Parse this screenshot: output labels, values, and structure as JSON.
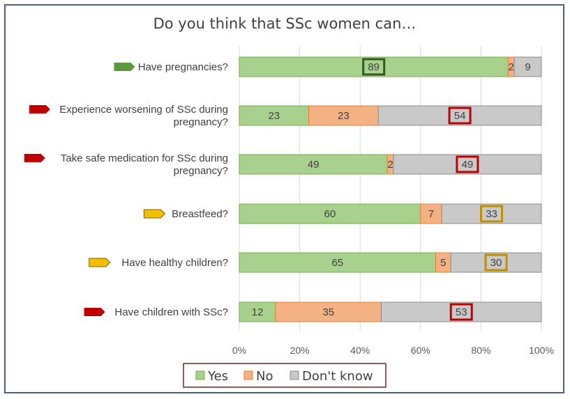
{
  "chart_data": {
    "type": "bar",
    "orientation": "horizontal-stacked-100",
    "title": "Do you think that SSc women can…",
    "categories": [
      {
        "lines": [
          "Have pregnancies?"
        ],
        "flag": "green-arrow",
        "flag_color": "#5b9a3c"
      },
      {
        "lines": [
          "Experience worsening of SSc during",
          "pregnancy?"
        ],
        "flag": "red-arrow",
        "flag_color": "#c00000"
      },
      {
        "lines": [
          "Take safe medication for SSc during",
          "pregnancy?"
        ],
        "flag": "red-arrow",
        "flag_color": "#c00000"
      },
      {
        "lines": [
          "Breastfeed?"
        ],
        "flag": "yellow-arrow",
        "flag_color": "#f5bf00"
      },
      {
        "lines": [
          "Have healthy children?"
        ],
        "flag": "yellow-arrow",
        "flag_color": "#f5bf00"
      },
      {
        "lines": [
          "Have children with SSc?"
        ],
        "flag": "red-arrow",
        "flag_color": "#c00000"
      }
    ],
    "series": [
      {
        "name": "Yes",
        "color": "#a9d18e",
        "edge": "#70ad47",
        "values": [
          89,
          23,
          49,
          60,
          65,
          12
        ]
      },
      {
        "name": "No",
        "color": "#f4b183",
        "edge": "#ed7d31",
        "values": [
          2,
          23,
          2,
          7,
          5,
          35
        ]
      },
      {
        "name": "Don't know",
        "color": "#c9c9c9",
        "edge": "#8c8c8c",
        "values": [
          9,
          54,
          49,
          33,
          30,
          53
        ]
      }
    ],
    "highlights": [
      {
        "category": 0,
        "series": 0,
        "color": "#375623"
      },
      {
        "category": 1,
        "series": 2,
        "color": "#c00000"
      },
      {
        "category": 2,
        "series": 2,
        "color": "#c00000"
      },
      {
        "category": 3,
        "series": 2,
        "color": "#bf8f00"
      },
      {
        "category": 4,
        "series": 2,
        "color": "#bf8f00"
      },
      {
        "category": 5,
        "series": 2,
        "color": "#c00000"
      }
    ],
    "xlim": [
      0,
      100
    ],
    "xticks": [
      "0%",
      "20%",
      "40%",
      "60%",
      "80%",
      "100%"
    ],
    "legend_position": "bottom",
    "legend_border_color": "#7b1f1f"
  }
}
